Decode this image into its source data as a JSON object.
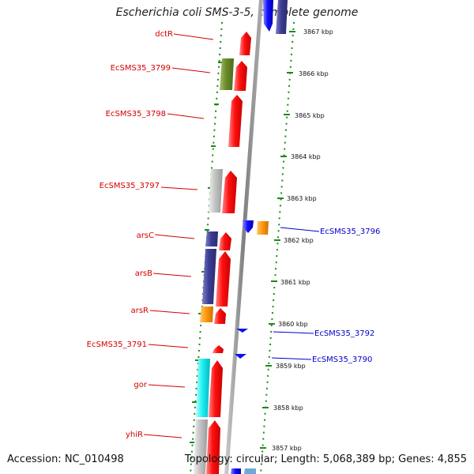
{
  "title": "Escherichia coli SMS-3-5, complete genome",
  "accession": "Accession: NC_010498",
  "topology": "Topology: circular; Length: 5,068,389 bp; Genes: 4,855",
  "scale_labels": [
    "3867 kbp",
    "3866 kbp",
    "3865 kbp",
    "3864 kbp",
    "3863 kbp",
    "3862 kbp",
    "3861 kbp",
    "3860 kbp",
    "3859 kbp",
    "3858 kbp",
    "3857 kbp"
  ],
  "genes_left": [
    "dctR",
    "EcSMS35_3799",
    "EcSMS35_3798",
    "EcSMS35_3797",
    "arsC",
    "arsB",
    "arsR",
    "EcSMS35_3791",
    "gor",
    "yhiR"
  ],
  "genes_right": [
    "EcSMS35_3796",
    "EcSMS35_3792",
    "EcSMS35_3790"
  ],
  "colors": {
    "forward": "#ff1a1a",
    "reverse": "#1a1aff",
    "dotted_track": "#1a8a1a",
    "backbone": "#8a8a8a",
    "left_label": "#d40000",
    "right_label": "#0000cc"
  }
}
